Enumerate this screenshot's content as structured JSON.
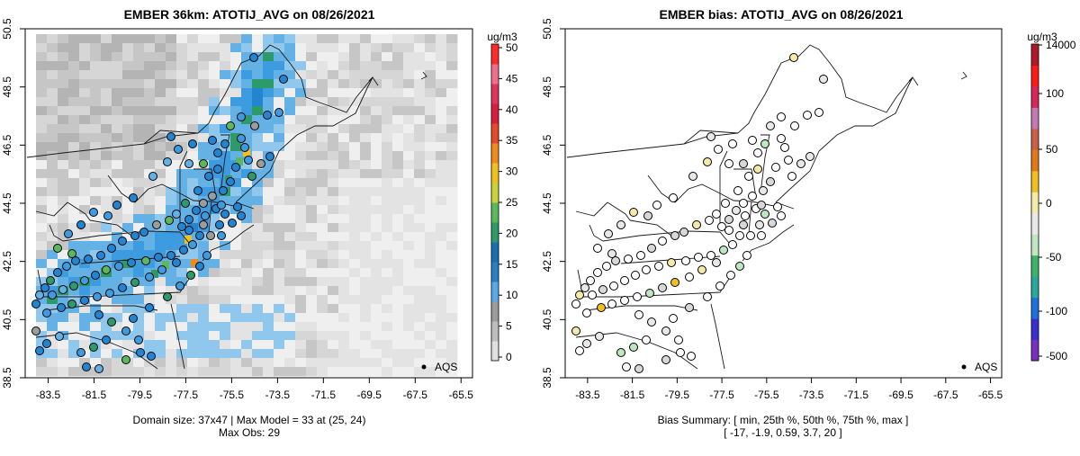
{
  "chart_data": [
    {
      "type": "map",
      "title": "EMBER 36km: ATOTIJ_AVG on 08/26/2021",
      "x_ticks": [
        "-83.5",
        "-81.5",
        "-79.5",
        "-77.5",
        "-75.5",
        "-73.5",
        "-71.5",
        "-69.5",
        "-67.5",
        "-65.5"
      ],
      "y_ticks": [
        "38.5",
        "40.5",
        "42.5",
        "44.5",
        "46.5",
        "48.5",
        "50.5"
      ],
      "xlim": [
        -84.5,
        -65
      ],
      "ylim": [
        38.5,
        50.5
      ],
      "colorbar": {
        "unit": "ug/m3",
        "ticks": [
          "0",
          "5",
          "10",
          "15",
          "20",
          "25",
          "30",
          "35",
          "40",
          "45",
          "50"
        ],
        "range": [
          0,
          50
        ],
        "colors": [
          "#e0e0e0",
          "#bdbdbd",
          "#9c9c9c",
          "#5aa9e6",
          "#2b7fc9",
          "#1a6fb0",
          "#2d9a6a",
          "#5cb85c",
          "#c9d23a",
          "#f0c020",
          "#f08a1e",
          "#e64a2e",
          "#d81e3c",
          "#e0355f",
          "#f06f8f",
          "#ff2a2a"
        ]
      },
      "legend_label": "AQS",
      "footer_line1": "Domain size: 37x47 | Max Model = 33 at (25, 24)",
      "footer_line2": "Max Obs: 29"
    },
    {
      "type": "map",
      "title": "EMBER bias: ATOTIJ_AVG on 08/26/2021",
      "x_ticks": [
        "-83.5",
        "-81.5",
        "-79.5",
        "-77.5",
        "-75.5",
        "-73.5",
        "-71.5",
        "-69.5",
        "-67.5",
        "-65.5"
      ],
      "y_ticks": [
        "38.5",
        "40.5",
        "42.5",
        "44.5",
        "46.5",
        "48.5",
        "50.5"
      ],
      "xlim": [
        -84.5,
        -65
      ],
      "ylim": [
        38.5,
        50.5
      ],
      "colorbar": {
        "unit": "ug/m3",
        "ticks": [
          "-500",
          "-100",
          "-50",
          "0",
          "50",
          "100",
          "14000"
        ],
        "colors": [
          "#7b2fbe",
          "#3b2fd0",
          "#1f6fe0",
          "#2aa7a0",
          "#3db36a",
          "#bfe6c0",
          "#e8e8e8",
          "#f3e9a8",
          "#f0c020",
          "#e07a1a",
          "#c9604a",
          "#c47ab0",
          "#d8285a",
          "#ff1a1a",
          "#b01a2a"
        ]
      },
      "legend_label": "AQS",
      "footer_line1": "Bias Summary: [ min, 25th %, 50th %, 75th %, max ]",
      "footer_line2": "[ -17,   -1.9,   0.59,   3.7,   20 ]",
      "bias_summary": {
        "min": -17,
        "p25": -1.9,
        "p50": 0.59,
        "p75": 3.7,
        "max": 20
      }
    }
  ]
}
